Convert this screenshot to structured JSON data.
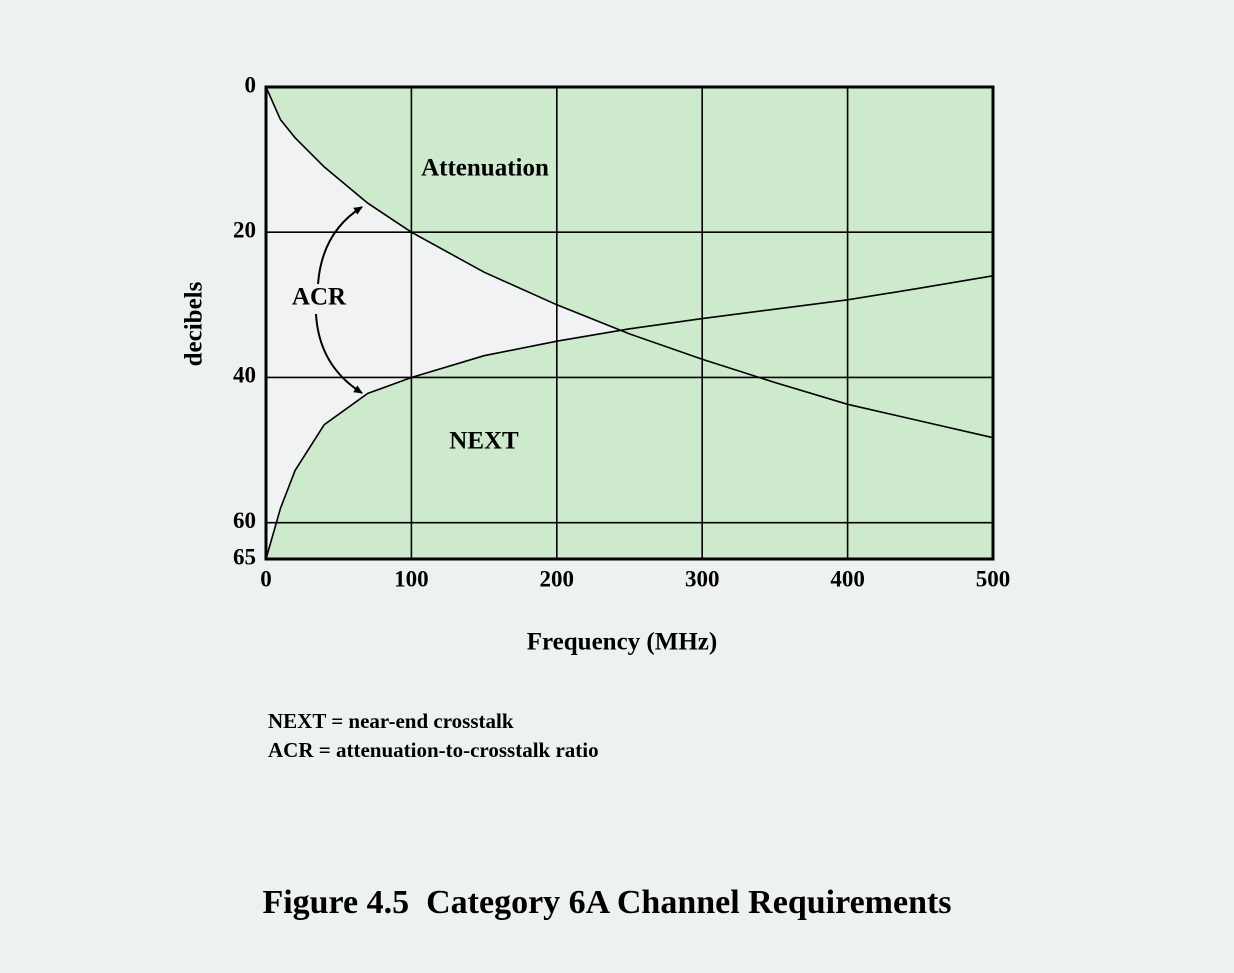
{
  "chart_data": {
    "type": "area",
    "caption": "Figure 4.5  Category 6A Channel Requirements",
    "xlabel": "Frequency (MHz)",
    "ylabel": "decibels",
    "x": [
      0,
      10,
      20,
      40,
      70,
      100,
      150,
      200,
      250,
      300,
      350,
      400,
      450,
      500
    ],
    "series": [
      {
        "name": "Attenuation",
        "color": "#000000",
        "fill": "#cdeacd",
        "fill_to": 0,
        "values": [
          0,
          4.5,
          7,
          11,
          16,
          20,
          25.5,
          30,
          34,
          37.5,
          40.7,
          43.7,
          46,
          48.3
        ]
      },
      {
        "name": "NEXT",
        "color": "#000000",
        "fill": "#cdeacd",
        "fill_to": 65,
        "values": [
          65,
          58,
          52.8,
          46.5,
          42.2,
          40,
          37,
          35,
          33.3,
          31.9,
          30.6,
          29.3,
          27.7,
          26
        ]
      }
    ],
    "annotations": [
      "ACR"
    ],
    "notes": [
      "NEXT = near-end crosstalk",
      "ACR = attenuation-to-crosstalk ratio"
    ],
    "xlim": [
      0,
      500
    ],
    "xticks": [
      0,
      100,
      200,
      300,
      400,
      500
    ],
    "ylim": [
      0,
      65
    ],
    "yticks": [
      0,
      20,
      40,
      60,
      65
    ],
    "y_inverted": true,
    "grid": true
  }
}
